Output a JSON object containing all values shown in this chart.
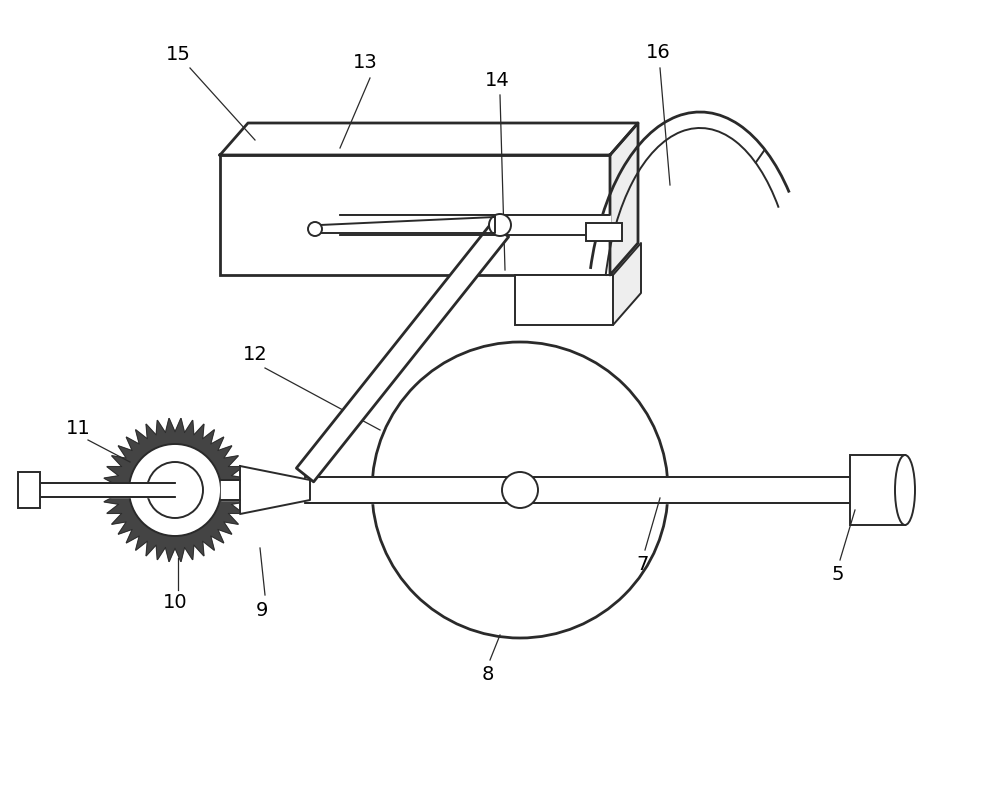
{
  "bg_color": "#ffffff",
  "line_color": "#2a2a2a",
  "label_color": "#000000",
  "fig_width": 10.0,
  "fig_height": 7.85,
  "dpi": 100
}
